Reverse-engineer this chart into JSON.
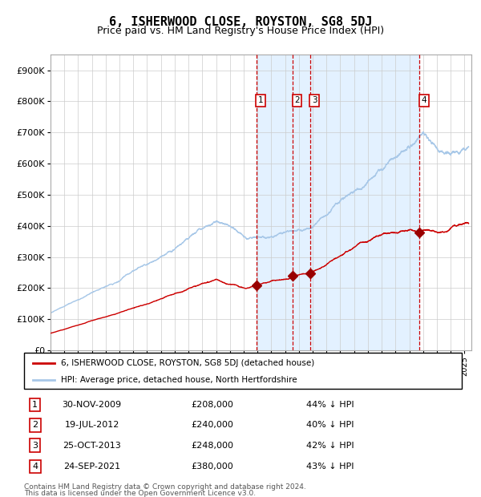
{
  "title": "6, ISHERWOOD CLOSE, ROYSTON, SG8 5DJ",
  "subtitle": "Price paid vs. HM Land Registry's House Price Index (HPI)",
  "hpi_label": "HPI: Average price, detached house, North Hertfordshire",
  "property_label": "6, ISHERWOOD CLOSE, ROYSTON, SG8 5DJ (detached house)",
  "hpi_color": "#a8c8e8",
  "property_color": "#cc0000",
  "sale_color": "#990000",
  "vline_color": "#cc0000",
  "shade_color": "#ddeeff",
  "background_color": "#ffffff",
  "grid_color": "#cccccc",
  "ylim": [
    0,
    950000
  ],
  "yticks": [
    0,
    100000,
    200000,
    300000,
    400000,
    500000,
    600000,
    700000,
    800000,
    900000
  ],
  "ytick_labels": [
    "£0",
    "£100K",
    "£200K",
    "£300K",
    "£400K",
    "£500K",
    "£600K",
    "£700K",
    "£800K",
    "£900K"
  ],
  "sales": [
    {
      "num": 1,
      "date_x": 2009.92,
      "price": 208000,
      "label": "30-NOV-2009",
      "price_label": "£208,000",
      "pct": "44% ↓ HPI"
    },
    {
      "num": 2,
      "date_x": 2012.55,
      "price": 240000,
      "label": "19-JUL-2012",
      "price_label": "£240,000",
      "pct": "40% ↓ HPI"
    },
    {
      "num": 3,
      "date_x": 2013.82,
      "price": 248000,
      "label": "25-OCT-2013",
      "price_label": "£248,000",
      "pct": "42% ↓ HPI"
    },
    {
      "num": 4,
      "date_x": 2021.74,
      "price": 380000,
      "label": "24-SEP-2021",
      "price_label": "£380,000",
      "pct": "43% ↓ HPI"
    }
  ],
  "footnote1": "Contains HM Land Registry data © Crown copyright and database right 2024.",
  "footnote2": "This data is licensed under the Open Government Licence v3.0.",
  "xmin": 1995.0,
  "xmax": 2025.5
}
